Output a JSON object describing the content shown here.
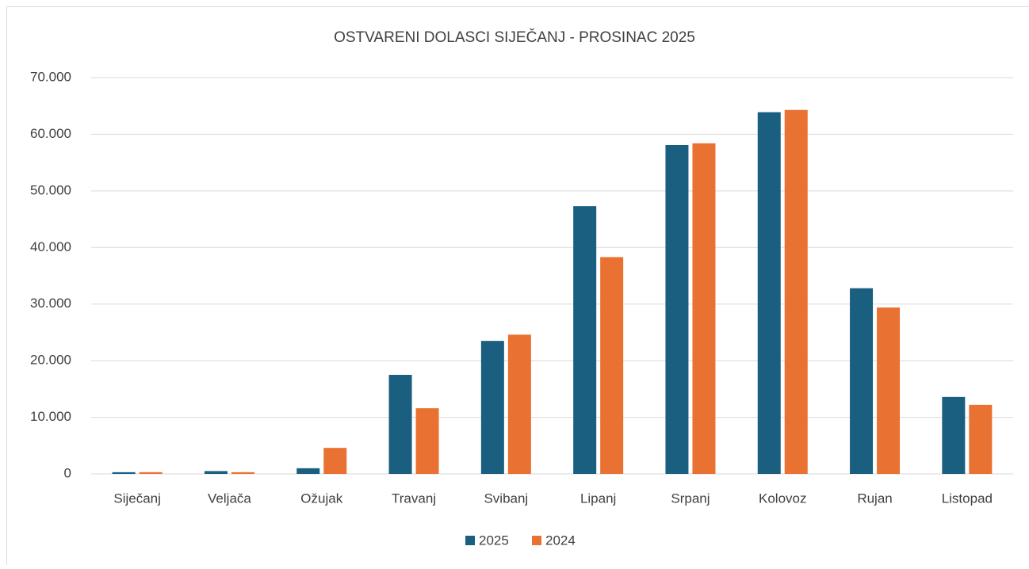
{
  "chart_data": {
    "type": "bar",
    "title": "OSTVARENI DOLASCI SIJEČANJ - PROSINAC 2025",
    "categories": [
      "Siječanj",
      "Veljača",
      "Ožujak",
      "Travanj",
      "Svibanj",
      "Lipanj",
      "Srpanj",
      "Kolovoz",
      "Rujan",
      "Listopad"
    ],
    "series": [
      {
        "name": "2025",
        "color": "#1a5e80",
        "values": [
          300,
          500,
          1000,
          17500,
          23500,
          47300,
          58100,
          63900,
          32800,
          13600
        ]
      },
      {
        "name": "2024",
        "color": "#e97132",
        "values": [
          300,
          300,
          4600,
          11600,
          24600,
          38300,
          58400,
          64300,
          29400,
          12200
        ]
      }
    ],
    "ylim": [
      0,
      70000
    ],
    "yticks": [
      0,
      {
        "value": 10000,
        "label": "10.000"
      },
      {
        "value": 20000,
        "label": "20.000"
      },
      {
        "value": 30000,
        "label": "30.000"
      },
      {
        "value": 40000,
        "label": "40.000"
      },
      {
        "value": 50000,
        "label": "50.000"
      },
      {
        "value": 60000,
        "label": "60.000"
      },
      {
        "value": 70000,
        "label": "70.000"
      }
    ],
    "grid": true,
    "legend": "bottom"
  }
}
